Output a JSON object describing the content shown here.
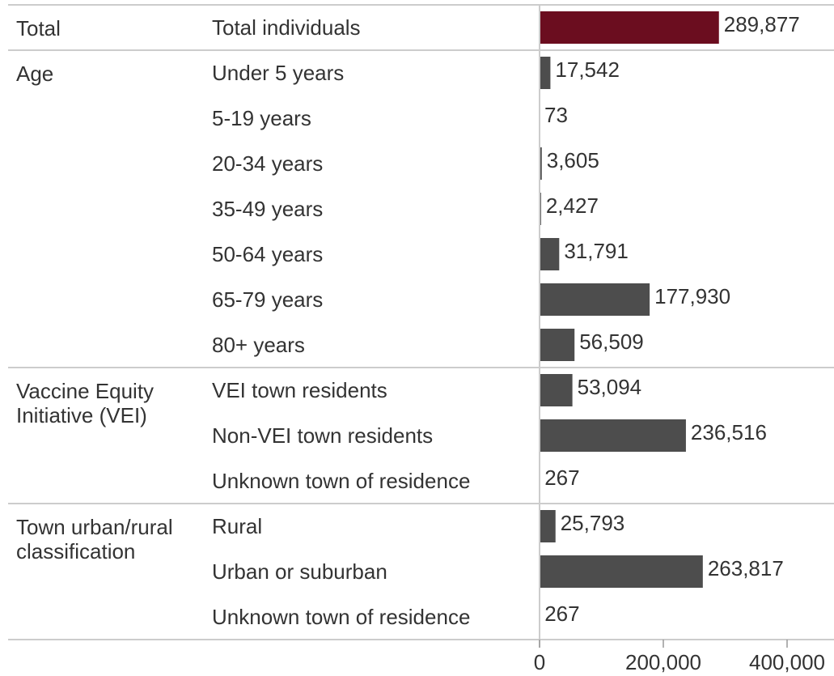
{
  "chart_data": {
    "type": "bar",
    "groups": [
      {
        "label": "Total",
        "color": "#6b0d1f",
        "categories": [
          "Total individuals"
        ],
        "values": [
          289877
        ],
        "value_labels": [
          "289,877"
        ]
      },
      {
        "label": "Age",
        "color": "#4d4d4d",
        "categories": [
          "Under 5 years",
          "5-19 years",
          "20-34 years",
          "35-49 years",
          "50-64 years",
          "65-79 years",
          "80+ years"
        ],
        "values": [
          17542,
          73,
          3605,
          2427,
          31791,
          177930,
          56509
        ],
        "value_labels": [
          "17,542",
          "73",
          "3,605",
          "2,427",
          "31,791",
          "177,930",
          "56,509"
        ]
      },
      {
        "label": "Vaccine Equity Initiative (VEI)",
        "color": "#4d4d4d",
        "categories": [
          "VEI town residents",
          "Non-VEI town residents",
          "Unknown town of residence"
        ],
        "values": [
          53094,
          236516,
          267
        ],
        "value_labels": [
          "53,094",
          "236,516",
          "267"
        ]
      },
      {
        "label": "Town urban/rural classification",
        "color": "#4d4d4d",
        "categories": [
          "Rural",
          "Urban or suburban",
          "Unknown town of residence"
        ],
        "values": [
          25793,
          263817,
          267
        ],
        "value_labels": [
          "25,793",
          "263,817",
          "267"
        ]
      }
    ],
    "xlim": [
      0,
      475000
    ],
    "xticks": [
      0,
      {
        "value": 200000,
        "label": "200,000"
      },
      {
        "value": 400000,
        "label": "400,000"
      }
    ]
  }
}
